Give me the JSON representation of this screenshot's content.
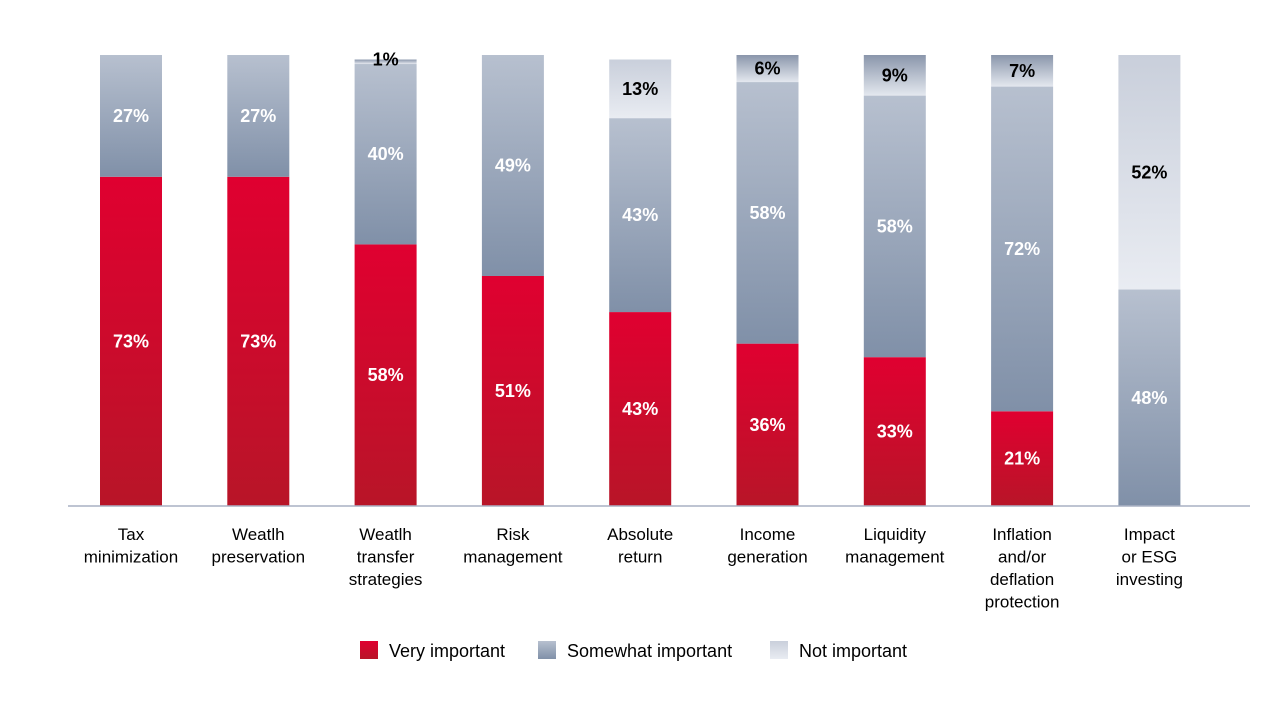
{
  "chart_data": {
    "type": "bar",
    "stacked": true,
    "title": "",
    "xlabel": "",
    "ylabel": "",
    "ylim": [
      0,
      100
    ],
    "grid": false,
    "legend_position": "bottom",
    "categories": [
      [
        "Tax",
        "minimization"
      ],
      [
        "Weatlh",
        "preservation"
      ],
      [
        "Weatlh",
        "transfer",
        "strategies"
      ],
      [
        "Risk",
        "management"
      ],
      [
        "Absolute",
        "return"
      ],
      [
        "Income",
        "generation"
      ],
      [
        "Liquidity",
        "management"
      ],
      [
        "Inflation",
        "and/or",
        "deflation",
        "protection"
      ],
      [
        "Impact",
        "or ESG",
        "investing"
      ]
    ],
    "series": [
      {
        "name": "Very important",
        "color": "#d4122e",
        "values": [
          73,
          73,
          58,
          51,
          43,
          36,
          33,
          21,
          0
        ]
      },
      {
        "name": "Somewhat important",
        "color": "#98a5ba",
        "values": [
          27,
          27,
          40,
          49,
          43,
          58,
          58,
          72,
          48
        ]
      },
      {
        "name": "Not important",
        "color": "#dde1ea",
        "values": [
          0,
          0,
          1,
          0,
          13,
          6,
          9,
          7,
          52
        ]
      }
    ],
    "data_labels": [
      [
        "73%",
        "27%",
        ""
      ],
      [
        "73%",
        "27%",
        ""
      ],
      [
        "58%",
        "40%",
        "1%"
      ],
      [
        "51%",
        "49%",
        ""
      ],
      [
        "43%",
        "43%",
        "13%"
      ],
      [
        "36%",
        "58%",
        "6%"
      ],
      [
        "33%",
        "58%",
        "9%"
      ],
      [
        "21%",
        "72%",
        "7%"
      ],
      [
        "",
        "48%",
        "52%"
      ]
    ]
  }
}
